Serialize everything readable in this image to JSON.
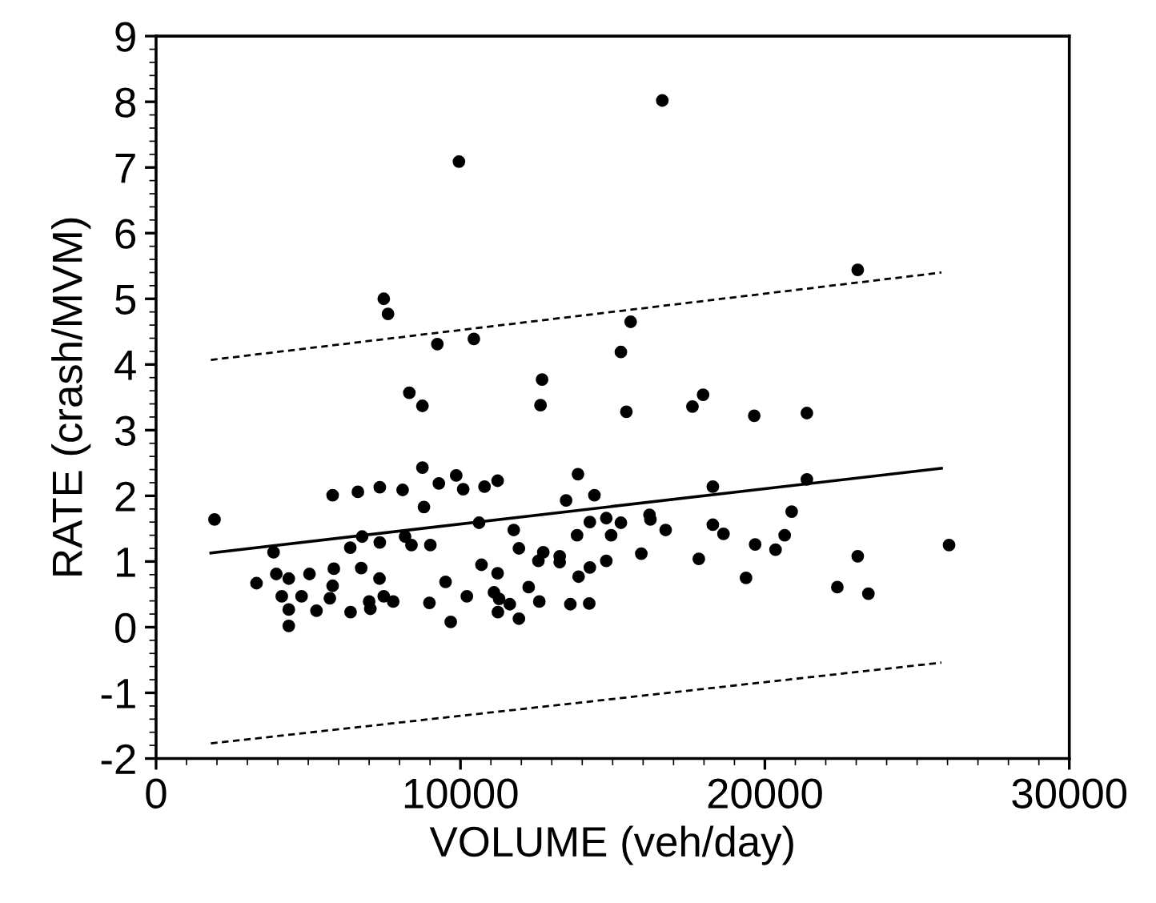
{
  "chart_data": {
    "type": "scatter",
    "xlabel": "VOLUME (veh/day)",
    "ylabel": "RATE (crash/MVM)",
    "xlim": [
      0,
      30000
    ],
    "xticks": [
      0,
      10000,
      20000,
      30000
    ],
    "ylim": [
      -2,
      9
    ],
    "yticks": [
      -2,
      -1,
      0,
      1,
      2,
      3,
      4,
      5,
      6,
      7,
      8,
      9
    ],
    "grid": false,
    "series": [
      {
        "color": "#000000",
        "marker": "circle",
        "x": [
          1920,
          7480,
          7620,
          9240,
          10440,
          15270,
          15450,
          8320,
          8750,
          12680,
          12630,
          8750,
          5800,
          6630,
          7350,
          8100,
          9290,
          9860,
          10090,
          10790,
          11220,
          8800,
          13860,
          13470,
          14400,
          10610,
          11750,
          14250,
          14790,
          15270,
          14950,
          13830,
          3860,
          6770,
          6380,
          7350,
          8180,
          8390,
          9010,
          11920,
          12720,
          12560,
          13260,
          13260,
          14790,
          14250,
          13880,
          10690,
          11220,
          3300,
          3950,
          4360,
          5040,
          5840,
          5800,
          6740,
          7340,
          9510,
          4130,
          4780,
          5710,
          4360,
          5270,
          6390,
          7040,
          7000,
          7480,
          7790,
          8980,
          10210,
          11100,
          11270,
          11620,
          11230,
          11920,
          12240,
          12590,
          13610,
          14230,
          4360,
          9680,
          23050,
          15590,
          17620,
          17970,
          19650,
          21380,
          18290,
          21380,
          16210,
          16240,
          16740,
          18290,
          18640,
          20880,
          20650,
          19680,
          20350,
          15940,
          17830,
          23050,
          26050,
          19380,
          22380,
          23400,
          9950,
          16630
        ],
        "values": [
          1.64,
          5.0,
          4.77,
          4.31,
          4.39,
          4.19,
          3.28,
          3.57,
          3.37,
          3.77,
          3.38,
          2.43,
          2.01,
          2.06,
          2.13,
          2.09,
          2.19,
          2.31,
          2.1,
          2.14,
          2.23,
          1.83,
          2.33,
          1.93,
          2.01,
          1.59,
          1.48,
          1.6,
          1.66,
          1.59,
          1.4,
          1.4,
          1.14,
          1.38,
          1.21,
          1.29,
          1.38,
          1.25,
          1.25,
          1.2,
          1.14,
          1.01,
          1.08,
          0.99,
          1.01,
          0.91,
          0.77,
          0.95,
          0.82,
          0.67,
          0.81,
          0.74,
          0.81,
          0.89,
          0.63,
          0.9,
          0.74,
          0.69,
          0.47,
          0.47,
          0.44,
          0.27,
          0.25,
          0.23,
          0.28,
          0.39,
          0.47,
          0.39,
          0.37,
          0.47,
          0.53,
          0.43,
          0.35,
          0.23,
          0.13,
          0.61,
          0.39,
          0.35,
          0.36,
          0.02,
          0.08,
          5.44,
          4.65,
          3.36,
          3.54,
          3.22,
          3.26,
          2.14,
          2.25,
          1.71,
          1.64,
          1.48,
          1.56,
          1.42,
          1.76,
          1.4,
          1.26,
          1.18,
          1.12,
          1.04,
          1.08,
          1.25,
          0.75,
          0.61,
          0.51,
          7.09,
          8.02
        ]
      },
      {
        "type": "line",
        "color": "#000000",
        "line_style": "solid",
        "marker": "none",
        "x": [
          1800,
          25800
        ],
        "values": [
          1.13,
          2.42
        ]
      },
      {
        "type": "line",
        "color": "#000000",
        "line_style": "dashed",
        "marker": "none",
        "x": [
          1800,
          25800
        ],
        "values": [
          4.07,
          5.4
        ]
      },
      {
        "type": "line",
        "color": "#000000",
        "line_style": "dashed",
        "marker": "none",
        "x": [
          1800,
          25800
        ],
        "values": [
          -1.77,
          -0.54
        ]
      }
    ]
  }
}
